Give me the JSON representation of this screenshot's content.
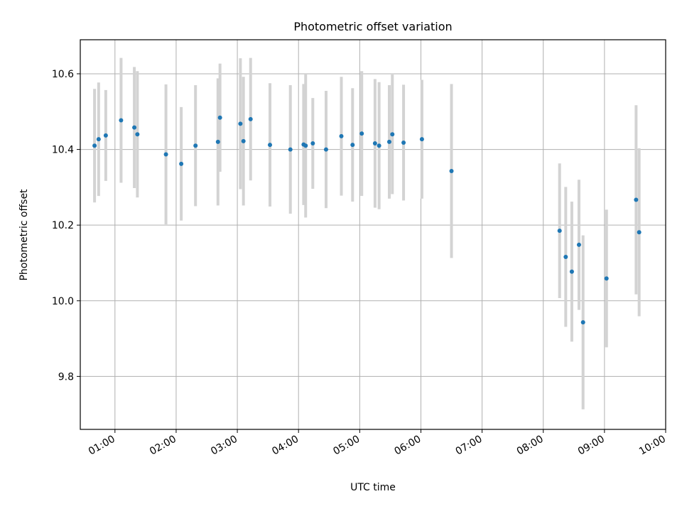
{
  "chart_data": {
    "type": "scatter",
    "title": "Photometric offset variation",
    "xlabel": "UTC time",
    "ylabel": "Photometric offset",
    "grid": true,
    "x_ticks": [
      "01:00",
      "02:00",
      "03:00",
      "04:00",
      "05:00",
      "06:00",
      "07:00",
      "08:00",
      "09:00",
      "10:00"
    ],
    "y_ticks": [
      9.8,
      10.0,
      10.2,
      10.4,
      10.6
    ],
    "xlim": [
      "00:26",
      "10:00"
    ],
    "ylim": [
      9.66,
      10.69
    ],
    "colors": {
      "points": "#1f77b4",
      "errorbars": "#d3d3d3",
      "grid": "#b0b0b0"
    },
    "points": [
      {
        "x": "00:40",
        "y": 10.41,
        "err": 0.15
      },
      {
        "x": "00:44",
        "y": 10.427,
        "err": 0.15
      },
      {
        "x": "00:51",
        "y": 10.437,
        "err": 0.12
      },
      {
        "x": "01:06",
        "y": 10.477,
        "err": 0.165
      },
      {
        "x": "01:19",
        "y": 10.458,
        "err": 0.16
      },
      {
        "x": "01:22",
        "y": 10.44,
        "err": 0.167
      },
      {
        "x": "01:50",
        "y": 10.387,
        "err": 0.185
      },
      {
        "x": "02:05",
        "y": 10.362,
        "err": 0.15
      },
      {
        "x": "02:19",
        "y": 10.41,
        "err": 0.16
      },
      {
        "x": "02:41",
        "y": 10.42,
        "err": 0.168
      },
      {
        "x": "02:43",
        "y": 10.484,
        "err": 0.143
      },
      {
        "x": "03:03",
        "y": 10.468,
        "err": 0.173
      },
      {
        "x": "03:06",
        "y": 10.422,
        "err": 0.17
      },
      {
        "x": "03:13",
        "y": 10.48,
        "err": 0.162
      },
      {
        "x": "03:32",
        "y": 10.412,
        "err": 0.163
      },
      {
        "x": "03:52",
        "y": 10.4,
        "err": 0.17
      },
      {
        "x": "04:05",
        "y": 10.413,
        "err": 0.16
      },
      {
        "x": "04:07",
        "y": 10.41,
        "err": 0.19
      },
      {
        "x": "04:14",
        "y": 10.416,
        "err": 0.12
      },
      {
        "x": "04:27",
        "y": 10.4,
        "err": 0.155
      },
      {
        "x": "04:42",
        "y": 10.435,
        "err": 0.157
      },
      {
        "x": "04:53",
        "y": 10.412,
        "err": 0.15
      },
      {
        "x": "05:02",
        "y": 10.442,
        "err": 0.165
      },
      {
        "x": "05:15",
        "y": 10.416,
        "err": 0.17
      },
      {
        "x": "05:19",
        "y": 10.41,
        "err": 0.168
      },
      {
        "x": "05:29",
        "y": 10.42,
        "err": 0.15
      },
      {
        "x": "05:32",
        "y": 10.44,
        "err": 0.158
      },
      {
        "x": "05:43",
        "y": 10.418,
        "err": 0.153
      },
      {
        "x": "06:01",
        "y": 10.427,
        "err": 0.157
      },
      {
        "x": "06:30",
        "y": 10.343,
        "err": 0.23
      },
      {
        "x": "08:16",
        "y": 10.185,
        "err": 0.178
      },
      {
        "x": "08:22",
        "y": 10.116,
        "err": 0.185
      },
      {
        "x": "08:28",
        "y": 10.077,
        "err": 0.185
      },
      {
        "x": "08:35",
        "y": 10.148,
        "err": 0.172
      },
      {
        "x": "08:39",
        "y": 9.943,
        "err": 0.23
      },
      {
        "x": "09:02",
        "y": 10.059,
        "err": 0.182
      },
      {
        "x": "09:31",
        "y": 10.267,
        "err": 0.25
      },
      {
        "x": "09:34",
        "y": 10.181,
        "err": 0.222
      }
    ]
  }
}
